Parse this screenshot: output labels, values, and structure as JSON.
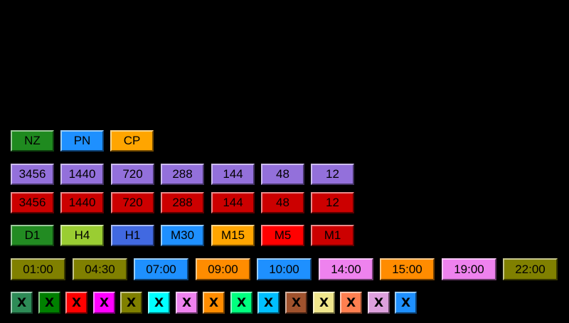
{
  "modes": [
    {
      "label": "NZ",
      "color": "#1f8a1f"
    },
    {
      "label": "PN",
      "color": "#1e90ff"
    },
    {
      "label": "CP",
      "color": "#ffa500"
    }
  ],
  "periods_purple": [
    {
      "label": "3456",
      "color": "#9370db"
    },
    {
      "label": "1440",
      "color": "#9370db"
    },
    {
      "label": "720",
      "color": "#9370db"
    },
    {
      "label": "288",
      "color": "#9370db"
    },
    {
      "label": "144",
      "color": "#9370db"
    },
    {
      "label": "48",
      "color": "#9370db"
    },
    {
      "label": "12",
      "color": "#9370db"
    }
  ],
  "periods_red": [
    {
      "label": "3456",
      "color": "#cc0000"
    },
    {
      "label": "1440",
      "color": "#cc0000"
    },
    {
      "label": "720",
      "color": "#cc0000"
    },
    {
      "label": "288",
      "color": "#cc0000"
    },
    {
      "label": "144",
      "color": "#cc0000"
    },
    {
      "label": "48",
      "color": "#cc0000"
    },
    {
      "label": "12",
      "color": "#cc0000"
    }
  ],
  "timeframes": [
    {
      "label": "D1",
      "color": "#228b22"
    },
    {
      "label": "H4",
      "color": "#9acd32"
    },
    {
      "label": "H1",
      "color": "#4169e1"
    },
    {
      "label": "M30",
      "color": "#1e90ff"
    },
    {
      "label": "M15",
      "color": "#ffa500"
    },
    {
      "label": "M5",
      "color": "#ff0000"
    },
    {
      "label": "M1",
      "color": "#cc0000"
    }
  ],
  "times": [
    {
      "label": "01:00",
      "color": "#808000"
    },
    {
      "label": "04:30",
      "color": "#808000"
    },
    {
      "label": "07:00",
      "color": "#1e90ff"
    },
    {
      "label": "09:00",
      "color": "#ff8c00"
    },
    {
      "label": "10:00",
      "color": "#1e90ff"
    },
    {
      "label": "14:00",
      "color": "#ee82ee"
    },
    {
      "label": "15:00",
      "color": "#ff8c00"
    },
    {
      "label": "19:00",
      "color": "#ee82ee"
    },
    {
      "label": "22:00",
      "color": "#808000"
    }
  ],
  "close_buttons": [
    {
      "label": "X",
      "color": "#2e8b57"
    },
    {
      "label": "X",
      "color": "#008000"
    },
    {
      "label": "X",
      "color": "#ff0000"
    },
    {
      "label": "X",
      "color": "#ff00ff"
    },
    {
      "label": "X",
      "color": "#808000"
    },
    {
      "label": "X",
      "color": "#00ffff"
    },
    {
      "label": "X",
      "color": "#ee82ee"
    },
    {
      "label": "X",
      "color": "#ff8c00"
    },
    {
      "label": "X",
      "color": "#00ff7f"
    },
    {
      "label": "X",
      "color": "#00bfff"
    },
    {
      "label": "X",
      "color": "#a0522d"
    },
    {
      "label": "X",
      "color": "#f0e68c"
    },
    {
      "label": "X",
      "color": "#ff7f50"
    },
    {
      "label": "X",
      "color": "#dda0dd"
    },
    {
      "label": "X",
      "color": "#1e90ff"
    }
  ]
}
